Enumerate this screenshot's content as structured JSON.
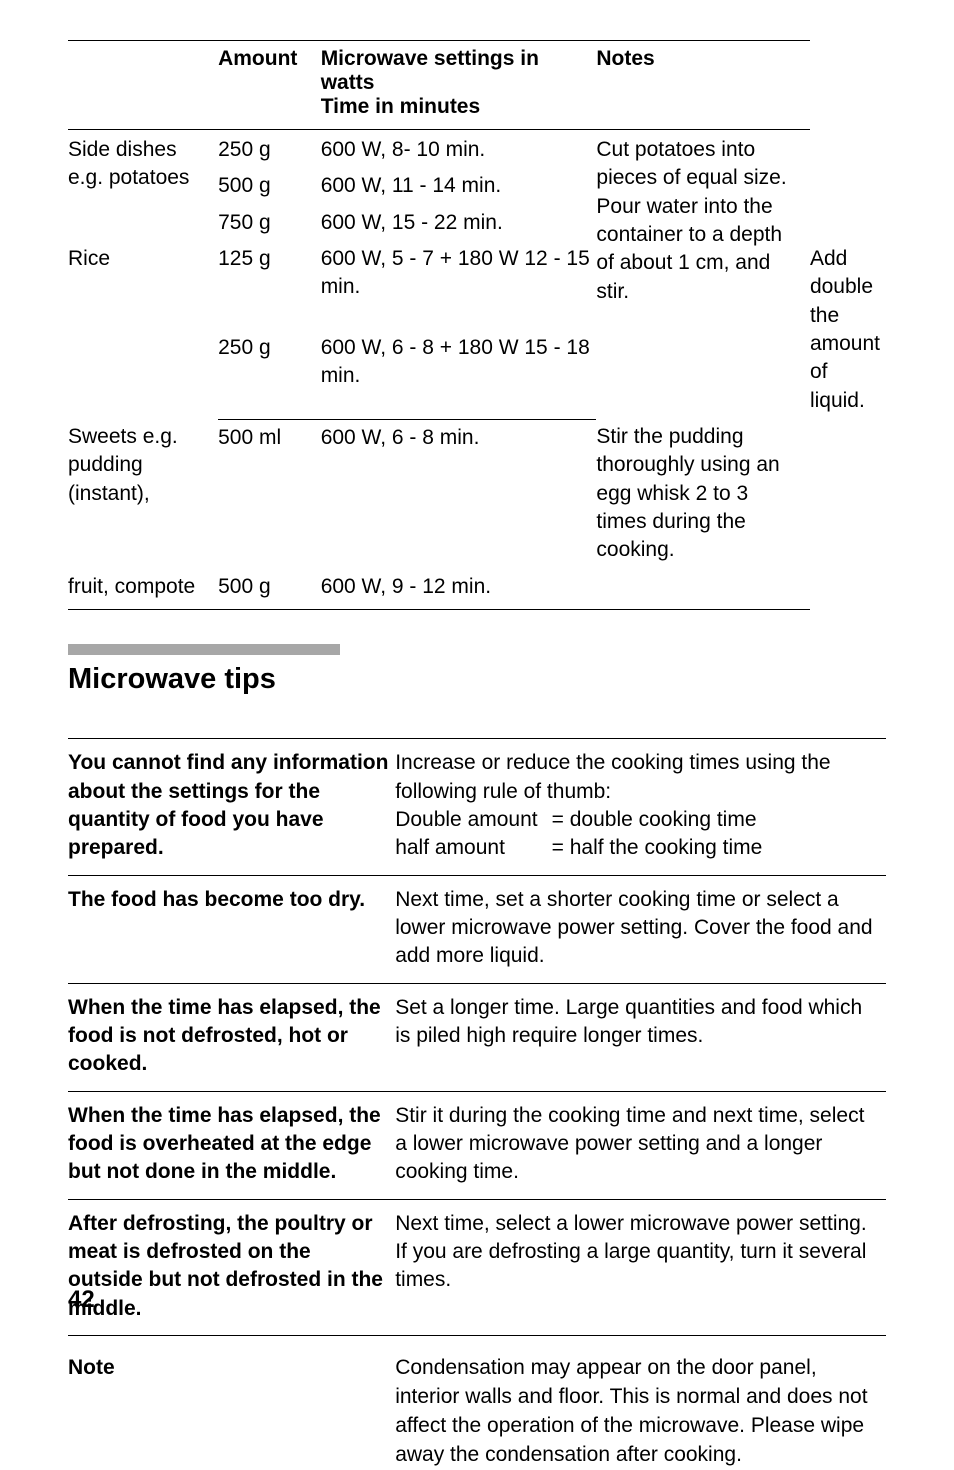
{
  "table1": {
    "headers": [
      "",
      "Amount",
      "Microwave settings in watts\nTime in minutes",
      "Notes"
    ],
    "rows": [
      {
        "item": "Side dishes e.g. potatoes",
        "amounts": [
          "250 g",
          "500 g",
          "750 g"
        ],
        "settings": [
          "600 W, 8- 10 min.",
          "600 W, 11 - 14 min.",
          "600 W, 15 - 22 min."
        ],
        "notes": "Cut potatoes into pieces of equal size. Pour water into the container to a depth of about 1 cm, and stir."
      },
      {
        "item": "Rice",
        "amounts": [
          "125 g",
          "250 g"
        ],
        "settings": [
          "600 W, 5 - 7 + 180 W 12 - 15 min.",
          "600 W, 6 - 8 + 180 W 15 - 18 min."
        ],
        "notes": "Add double the amount of liquid."
      },
      {
        "item": "Sweets e.g. pudding (instant),",
        "amounts": [
          "500 ml"
        ],
        "settings": [
          "600 W, 6 - 8 min."
        ],
        "notes": "Stir the pudding thoroughly using an egg whisk 2 to 3 times during the cooking."
      },
      {
        "item": "fruit, compote",
        "amounts": [
          "500 g"
        ],
        "settings": [
          "600 W, 9 - 12 min."
        ],
        "notes": ""
      }
    ]
  },
  "section_title": "Microwave tips",
  "table2": {
    "rows": [
      {
        "problem": "You cannot find any information about the settings for the quantity of food you have prepared.",
        "solution_intro": "Increase or reduce the cooking times using the following rule of thumb:",
        "eq": [
          [
            "Double amount",
            "= double cooking time"
          ],
          [
            "half amount",
            "= half the cooking time"
          ]
        ]
      },
      {
        "problem": "The food has become too dry.",
        "solution": "Next time, set a shorter cooking time or select a lower microwave power setting. Cover the food and add more liquid."
      },
      {
        "problem": "When the time has elapsed, the food is not defrosted, hot or cooked.",
        "solution": "Set a longer time. Large quantities and food which is piled high require longer times."
      },
      {
        "problem": "When the time has elapsed, the food is overheated at the edge but not done in the middle.",
        "solution": "Stir it during the cooking time and next time, select a lower microwave power setting and a longer cooking time."
      },
      {
        "problem": "After defrosting, the poultry or meat is defrosted on the outside but not defrosted in the middle.",
        "solution": "Next time, select a lower microwave power setting. If you are defrosting a large quantity, turn it several times."
      }
    ]
  },
  "note": {
    "label": "Note",
    "body": "Condensation may appear on the door panel, interior walls and floor. This is normal and does not affect the operation of the microwave. Please wipe away the condensation after cooking."
  },
  "page_number": "42"
}
